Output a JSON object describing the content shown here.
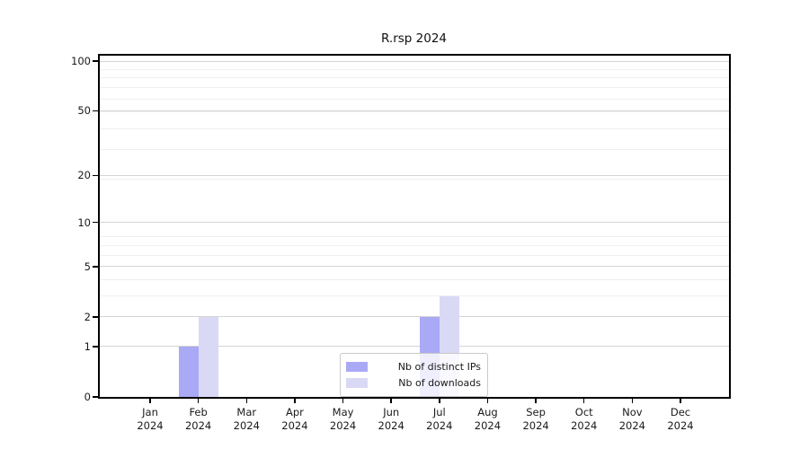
{
  "chart_data": {
    "type": "bar",
    "title": "R.rsp 2024",
    "x_months": [
      "Jan",
      "Feb",
      "Mar",
      "Apr",
      "May",
      "Jun",
      "Jul",
      "Aug",
      "Sep",
      "Oct",
      "Nov",
      "Dec"
    ],
    "x_year": "2024",
    "categories": [
      "Jan 2024",
      "Feb 2024",
      "Mar 2024",
      "Apr 2024",
      "May 2024",
      "Jun 2024",
      "Jul 2024",
      "Aug 2024",
      "Sep 2024",
      "Oct 2024",
      "Nov 2024",
      "Dec 2024"
    ],
    "series": [
      {
        "name": "Nb of distinct IPs",
        "color": "#a9a9f5",
        "values": [
          0,
          1,
          0,
          0,
          0,
          0,
          2,
          0,
          0,
          0,
          0,
          0
        ]
      },
      {
        "name": "Nb of downloads",
        "color": "#d9d9f6",
        "values": [
          0,
          2,
          0,
          0,
          0,
          0,
          3,
          0,
          0,
          0,
          0,
          0
        ]
      }
    ],
    "y_axis": {
      "scale": "log1p",
      "tick_values": [
        0,
        1,
        2,
        5,
        10,
        20,
        50,
        100
      ],
      "tick_labels": [
        "0",
        "1",
        "2",
        "5",
        "10",
        "20",
        "50",
        "100"
      ],
      "range_max": 100
    },
    "legend": {
      "position": "lower center",
      "entries": [
        "Nb of distinct IPs",
        "Nb of downloads"
      ]
    },
    "grid": true,
    "colors": {
      "grid_major": "#d4d4d4",
      "grid_minor": "#efefef",
      "axis": "#000000",
      "text": "#1a1a1a",
      "legend_border": "#c9c9c9"
    }
  }
}
